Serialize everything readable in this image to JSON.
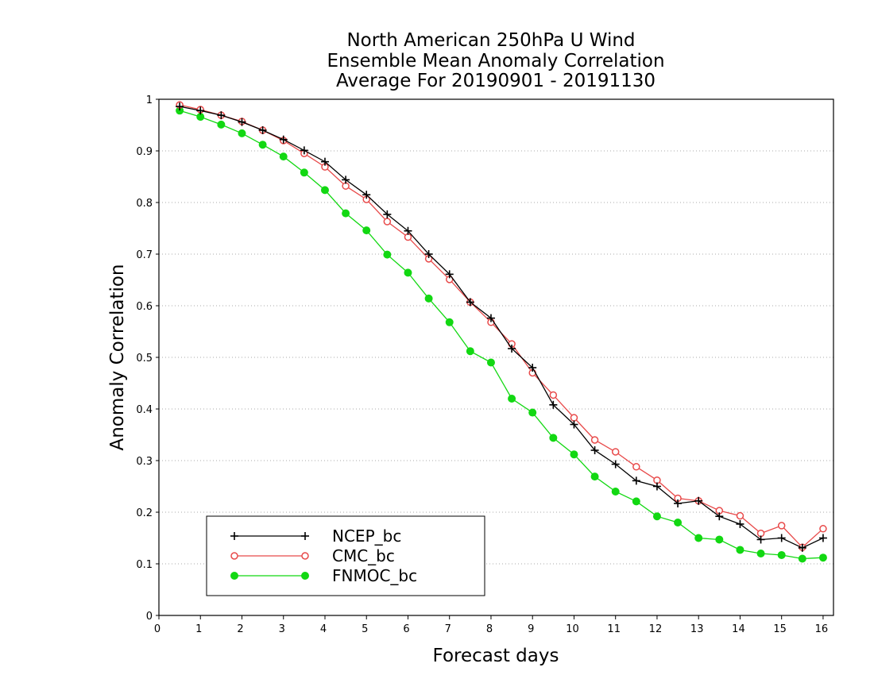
{
  "chart_data": {
    "type": "line",
    "title": [
      "North American 250hPa U Wind",
      "Ensemble Mean Anomaly Correlation",
      "Average For 20190901 - 20191130"
    ],
    "xlabel": "Forecast days",
    "ylabel": "Anomaly Correlation",
    "xlim": [
      0,
      16.25
    ],
    "ylim": [
      0,
      1
    ],
    "xticks": [
      "0",
      "1",
      "2",
      "3",
      "4",
      "5",
      "6",
      "7",
      "8",
      "9",
      "10",
      "11",
      "12",
      "13",
      "14",
      "15",
      "16"
    ],
    "yticks": [
      "0",
      "0.1",
      "0.2",
      "0.3",
      "0.4",
      "0.5",
      "0.6",
      "0.7",
      "0.8",
      "0.9",
      "1"
    ],
    "grid": "horizontal dotted",
    "legend_position": "bottom-left",
    "x": [
      0.5,
      1,
      1.5,
      2,
      2.5,
      3,
      3.5,
      4,
      4.5,
      5,
      5.5,
      6,
      6.5,
      7,
      7.5,
      8,
      8.5,
      9,
      9.5,
      10,
      10.5,
      11,
      11.5,
      12,
      12.5,
      13,
      13.5,
      14,
      14.5,
      15,
      15.5,
      16
    ],
    "series": [
      {
        "name": "NCEP_bc",
        "color": "#000000",
        "marker": "plus",
        "values": [
          0.986,
          0.978,
          0.969,
          0.956,
          0.94,
          0.922,
          0.901,
          0.879,
          0.844,
          0.815,
          0.777,
          0.745,
          0.7,
          0.661,
          0.607,
          0.576,
          0.517,
          0.48,
          0.408,
          0.37,
          0.32,
          0.293,
          0.261,
          0.25,
          0.217,
          0.222,
          0.192,
          0.177,
          0.147,
          0.15,
          0.131,
          0.15
        ]
      },
      {
        "name": "CMC_bc",
        "color": "#e84a4a",
        "marker": "open-circle",
        "values": [
          0.989,
          0.98,
          0.969,
          0.957,
          0.94,
          0.92,
          0.895,
          0.869,
          0.832,
          0.806,
          0.763,
          0.733,
          0.691,
          0.651,
          0.607,
          0.568,
          0.526,
          0.47,
          0.427,
          0.383,
          0.34,
          0.317,
          0.288,
          0.262,
          0.227,
          0.222,
          0.203,
          0.193,
          0.159,
          0.174,
          0.132,
          0.168
        ]
      },
      {
        "name": "FNMOC_bc",
        "color": "#12d812",
        "marker": "filled-circle",
        "values": [
          0.978,
          0.966,
          0.951,
          0.934,
          0.912,
          0.889,
          0.858,
          0.824,
          0.779,
          0.746,
          0.699,
          0.664,
          0.614,
          0.568,
          0.512,
          0.49,
          0.42,
          0.393,
          0.344,
          0.312,
          0.269,
          0.24,
          0.221,
          0.192,
          0.18,
          0.15,
          0.147,
          0.127,
          0.12,
          0.117,
          0.11,
          0.112
        ]
      }
    ]
  }
}
